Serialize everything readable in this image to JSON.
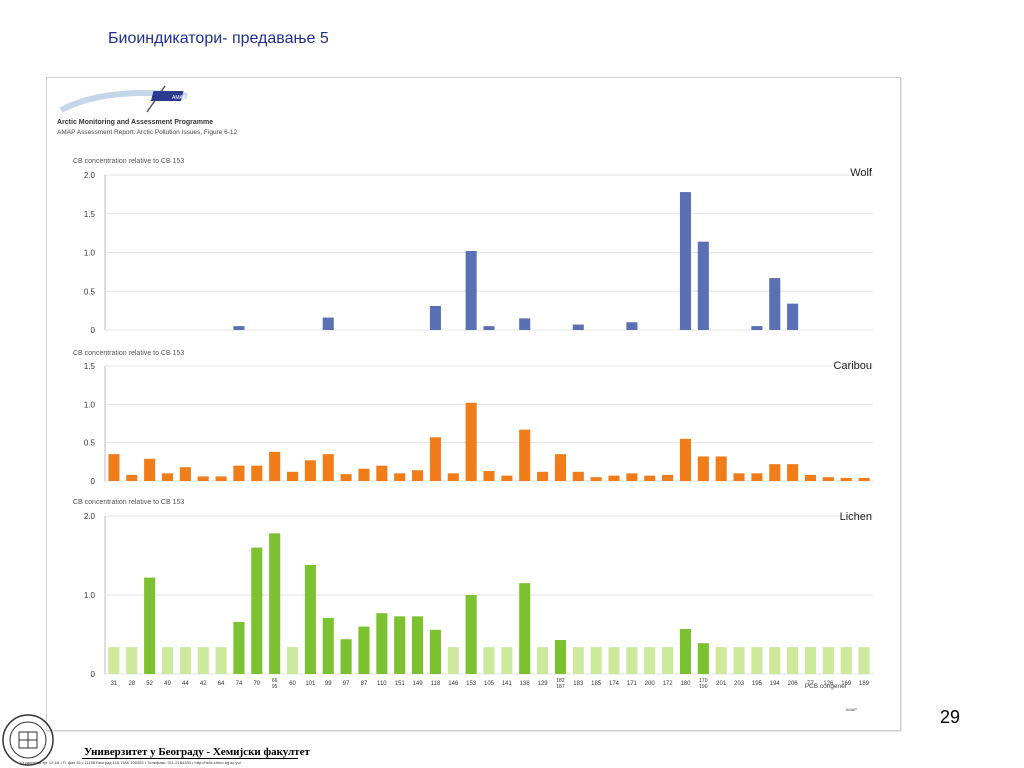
{
  "slide": {
    "title": "Биоиндикатори- предавање 5",
    "page_number": "29"
  },
  "figure": {
    "program_title": "Arctic Monitoring and Assessment Programme",
    "source": "AMAP Assessment Report: Arctic Pollution Issues, Figure 6-12",
    "logo_text": "AMAP",
    "footer_mark": "AMAP",
    "x_axis_title": "PCB congener"
  },
  "footer": {
    "university": "Универзитет у Београду - Хемијски факултет",
    "address": "Студентски трг 12-16 • П. фах 51 • 11158 Београд 118, ПАК 105305 • Телефакс: 011-2184330 • http://helix.chem.bg.ac.yu/",
    "seal_text": "Хемијски факултет"
  },
  "colors": {
    "wolf": "#5b6fb5",
    "caribou": "#f07c1a",
    "lichen": "#7cc12f",
    "lichen_light": "#cde99b",
    "grid": "#e4e4e4",
    "title": "#1f2f8f"
  },
  "chart_data": {
    "type": "bar",
    "categories": [
      "31",
      "28",
      "52",
      "49",
      "44",
      "42",
      "64",
      "74",
      "70",
      "66\n95",
      "60",
      "101",
      "99",
      "97",
      "87",
      "110",
      "151",
      "149",
      "118",
      "146",
      "153",
      "105",
      "141",
      "138",
      "129",
      "182\n187",
      "183",
      "185",
      "174",
      "171",
      "200",
      "172",
      "180",
      "170\n190",
      "201",
      "203",
      "195",
      "194",
      "206",
      "77",
      "126",
      "169",
      "189"
    ],
    "xlabel": "PCB congener",
    "panels": [
      {
        "name": "Wolf",
        "ylabel": "CB concentration relative to CB 153",
        "ylim": [
          0,
          2.0
        ],
        "yticks": [
          "0",
          "0.5",
          "1.0",
          "1.5",
          "2.0"
        ],
        "ytick_values": [
          0,
          0.5,
          1.0,
          1.5,
          2.0
        ],
        "values": [
          0,
          0,
          0,
          0,
          0,
          0,
          0,
          0.05,
          0,
          0,
          0,
          0,
          0.16,
          0,
          0,
          0,
          0,
          0,
          0.31,
          0,
          1.02,
          0.05,
          0,
          0.15,
          0,
          0,
          0.07,
          0,
          0,
          0.1,
          0,
          0,
          1.78,
          1.14,
          0,
          0,
          0.05,
          0.67,
          0.34,
          0,
          0,
          0,
          0
        ]
      },
      {
        "name": "Caribou",
        "ylabel": "CB concentration relative to CB 153",
        "ylim": [
          0,
          1.5
        ],
        "yticks": [
          "0",
          "0.5",
          "1.0",
          "1.5"
        ],
        "ytick_values": [
          0,
          0.5,
          1.0,
          1.5
        ],
        "values": [
          0.35,
          0.08,
          0.29,
          0.1,
          0.18,
          0.06,
          0.06,
          0.2,
          0.2,
          0.38,
          0.12,
          0.27,
          0.35,
          0.09,
          0.16,
          0.2,
          0.1,
          0.14,
          0.57,
          0.1,
          1.02,
          0.13,
          0.07,
          0.67,
          0.12,
          0.35,
          0.12,
          0.05,
          0.07,
          0.1,
          0.07,
          0.08,
          0.55,
          0.32,
          0.32,
          0.1,
          0.1,
          0.22,
          0.22,
          0.08,
          0.05,
          0.04,
          0.04
        ]
      },
      {
        "name": "Lichen",
        "ylabel": "CB concentration relative to CB 153",
        "ylim": [
          0,
          2.0
        ],
        "yticks": [
          "0",
          "1.0",
          "2.0"
        ],
        "ytick_values": [
          0,
          1.0,
          2.0
        ],
        "values": [
          0.34,
          0.34,
          1.22,
          0.34,
          0.34,
          0.34,
          0.34,
          0.66,
          1.6,
          1.78,
          0.34,
          1.38,
          0.71,
          0.44,
          0.6,
          0.77,
          0.73,
          0.73,
          0.56,
          0.34,
          1.0,
          0.34,
          0.34,
          1.15,
          0.34,
          0.43,
          0.34,
          0.34,
          0.34,
          0.34,
          0.34,
          0.34,
          0.57,
          0.39,
          0.34,
          0.34,
          0.34,
          0.34,
          0.34,
          0.34,
          0.34,
          0.34,
          0.34
        ],
        "light_bars": [
          0,
          1,
          3,
          4,
          5,
          6,
          10,
          19,
          21,
          22,
          24,
          26,
          27,
          28,
          29,
          30,
          31,
          34,
          35,
          36,
          37,
          38,
          39,
          40,
          41,
          42
        ]
      }
    ]
  }
}
